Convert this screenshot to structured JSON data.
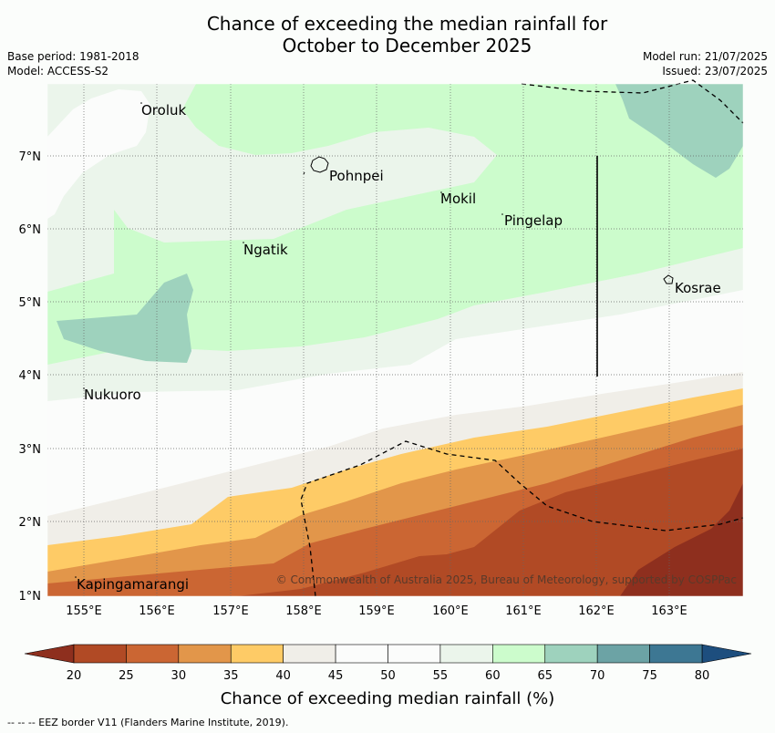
{
  "title_line1": "Chance of exceeding the median rainfall for",
  "title_line2": "October to December 2025",
  "base_period": "Base period: 1981-2018",
  "model": "Model: ACCESS-S2",
  "model_run": "Model run: 21/07/2025",
  "issued": "Issued: 23/07/2025",
  "lat_ticks": [
    "7°N",
    "6°N",
    "5°N",
    "4°N",
    "3°N",
    "2°N",
    "1°N"
  ],
  "lon_ticks": [
    "155°E",
    "156°E",
    "157°E",
    "158°E",
    "159°E",
    "160°E",
    "161°E",
    "162°E",
    "163°E"
  ],
  "places": {
    "oroluk": "Oroluk",
    "pohnpei": "Pohnpei",
    "mokil": "Mokil",
    "pingelap": "Pingelap",
    "ngatik": "Ngatik",
    "kosrae": "Kosrae",
    "nukuoro": "Nukuoro",
    "kapingamarangi": "Kapingamarangi"
  },
  "copyright": "© Commonwealth of Australia 2025, Bureau of Meteorology, supported by COSPPac",
  "colorbar": {
    "label": "Chance of exceeding median rainfall (%)",
    "ticks": [
      "20",
      "25",
      "30",
      "35",
      "40",
      "45",
      "50",
      "55",
      "60",
      "65",
      "70",
      "75",
      "80"
    ],
    "colors": [
      "#b14a25",
      "#cb6633",
      "#e2964a",
      "#fecb66",
      "#f0eee8",
      "#fbfcfb",
      "#fbfcfb",
      "#ebf5eb",
      "#ccfccc",
      "#9ed2bd",
      "#6ca3a5",
      "#3d7793"
    ],
    "under_color": "#8e2f1e",
    "over_color": "#1d4e7e"
  },
  "footnote": "--  --  -- EEZ border V11 (Flanders Marine Institute, 2019)."
}
